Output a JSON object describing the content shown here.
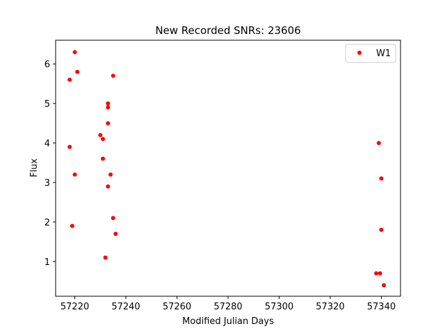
{
  "chart_data": {
    "type": "scatter",
    "title": "New Recorded SNRs: 23606",
    "xlabel": "Modified Julian Days",
    "ylabel": "Flux",
    "xlim": [
      57212.5,
      57347.5
    ],
    "ylim": [
      0.12,
      6.6
    ],
    "xticks": [
      57220,
      57240,
      57260,
      57280,
      57300,
      57320,
      57340
    ],
    "yticks": [
      1,
      2,
      3,
      4,
      5,
      6
    ],
    "grid": false,
    "legend": "top-right",
    "colors": {
      "series": "#ff0000"
    },
    "series": [
      {
        "name": "W1",
        "points": [
          [
            57218.0,
            5.6
          ],
          [
            57218.0,
            3.9
          ],
          [
            57219.0,
            1.9
          ],
          [
            57220.0,
            6.3
          ],
          [
            57220.0,
            3.2
          ],
          [
            57221.0,
            5.8
          ],
          [
            57230.0,
            4.2
          ],
          [
            57231.0,
            4.1
          ],
          [
            57231.0,
            3.6
          ],
          [
            57232.0,
            1.1
          ],
          [
            57233.0,
            5.0
          ],
          [
            57233.0,
            4.9
          ],
          [
            57233.0,
            4.5
          ],
          [
            57233.0,
            2.9
          ],
          [
            57234.0,
            3.2
          ],
          [
            57235.0,
            5.7
          ],
          [
            57235.0,
            2.1
          ],
          [
            57236.0,
            1.7
          ],
          [
            57338.0,
            0.7
          ],
          [
            57339.0,
            4.0
          ],
          [
            57339.5,
            0.7
          ],
          [
            57340.0,
            3.1
          ],
          [
            57340.0,
            1.8
          ],
          [
            57341.0,
            0.4
          ]
        ]
      }
    ]
  }
}
